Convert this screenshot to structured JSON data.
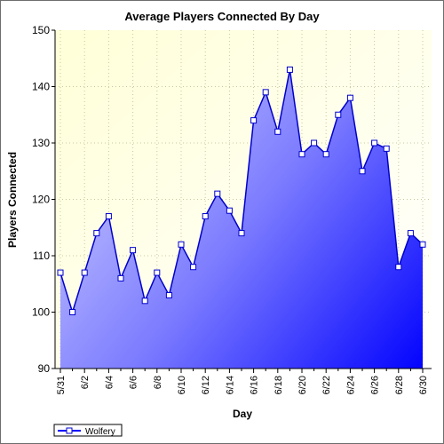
{
  "chart_data": {
    "type": "area",
    "title": "Average Players Connected By Day",
    "xlabel": "Day",
    "ylabel": "Players Connected",
    "x": [
      "5/31",
      "6/1",
      "6/2",
      "6/3",
      "6/4",
      "6/5",
      "6/6",
      "6/7",
      "6/8",
      "6/9",
      "6/10",
      "6/11",
      "6/12",
      "6/13",
      "6/14",
      "6/15",
      "6/16",
      "6/17",
      "6/18",
      "6/19",
      "6/20",
      "6/21",
      "6/22",
      "6/23",
      "6/24",
      "6/25",
      "6/26",
      "6/27",
      "6/28",
      "6/29",
      "6/30"
    ],
    "x_tick_labels": [
      "5/31",
      "6/2",
      "6/4",
      "6/6",
      "6/8",
      "6/10",
      "6/12",
      "6/14",
      "6/16",
      "6/18",
      "6/20",
      "6/22",
      "6/24",
      "6/26",
      "6/28",
      "6/30"
    ],
    "series": [
      {
        "name": "Wolfery",
        "values": [
          107,
          100,
          107,
          114,
          117,
          106,
          111,
          102,
          107,
          103,
          112,
          108,
          117,
          121,
          118,
          114,
          134,
          139,
          132,
          143,
          128,
          130,
          128,
          135,
          138,
          125,
          130,
          129,
          108,
          114,
          112
        ]
      }
    ],
    "ylim": [
      90,
      150
    ],
    "yticks": [
      90,
      100,
      110,
      120,
      130,
      140,
      150
    ],
    "grid": true,
    "legend": "bottom-left",
    "colors": {
      "line": "#0000cc",
      "fill_light": "#c8c8ff",
      "fill_dark": "#0000ff",
      "plot_background": "#ffffe0",
      "grid": "#c8c8a0",
      "marker_fill": "#ffffff"
    }
  }
}
